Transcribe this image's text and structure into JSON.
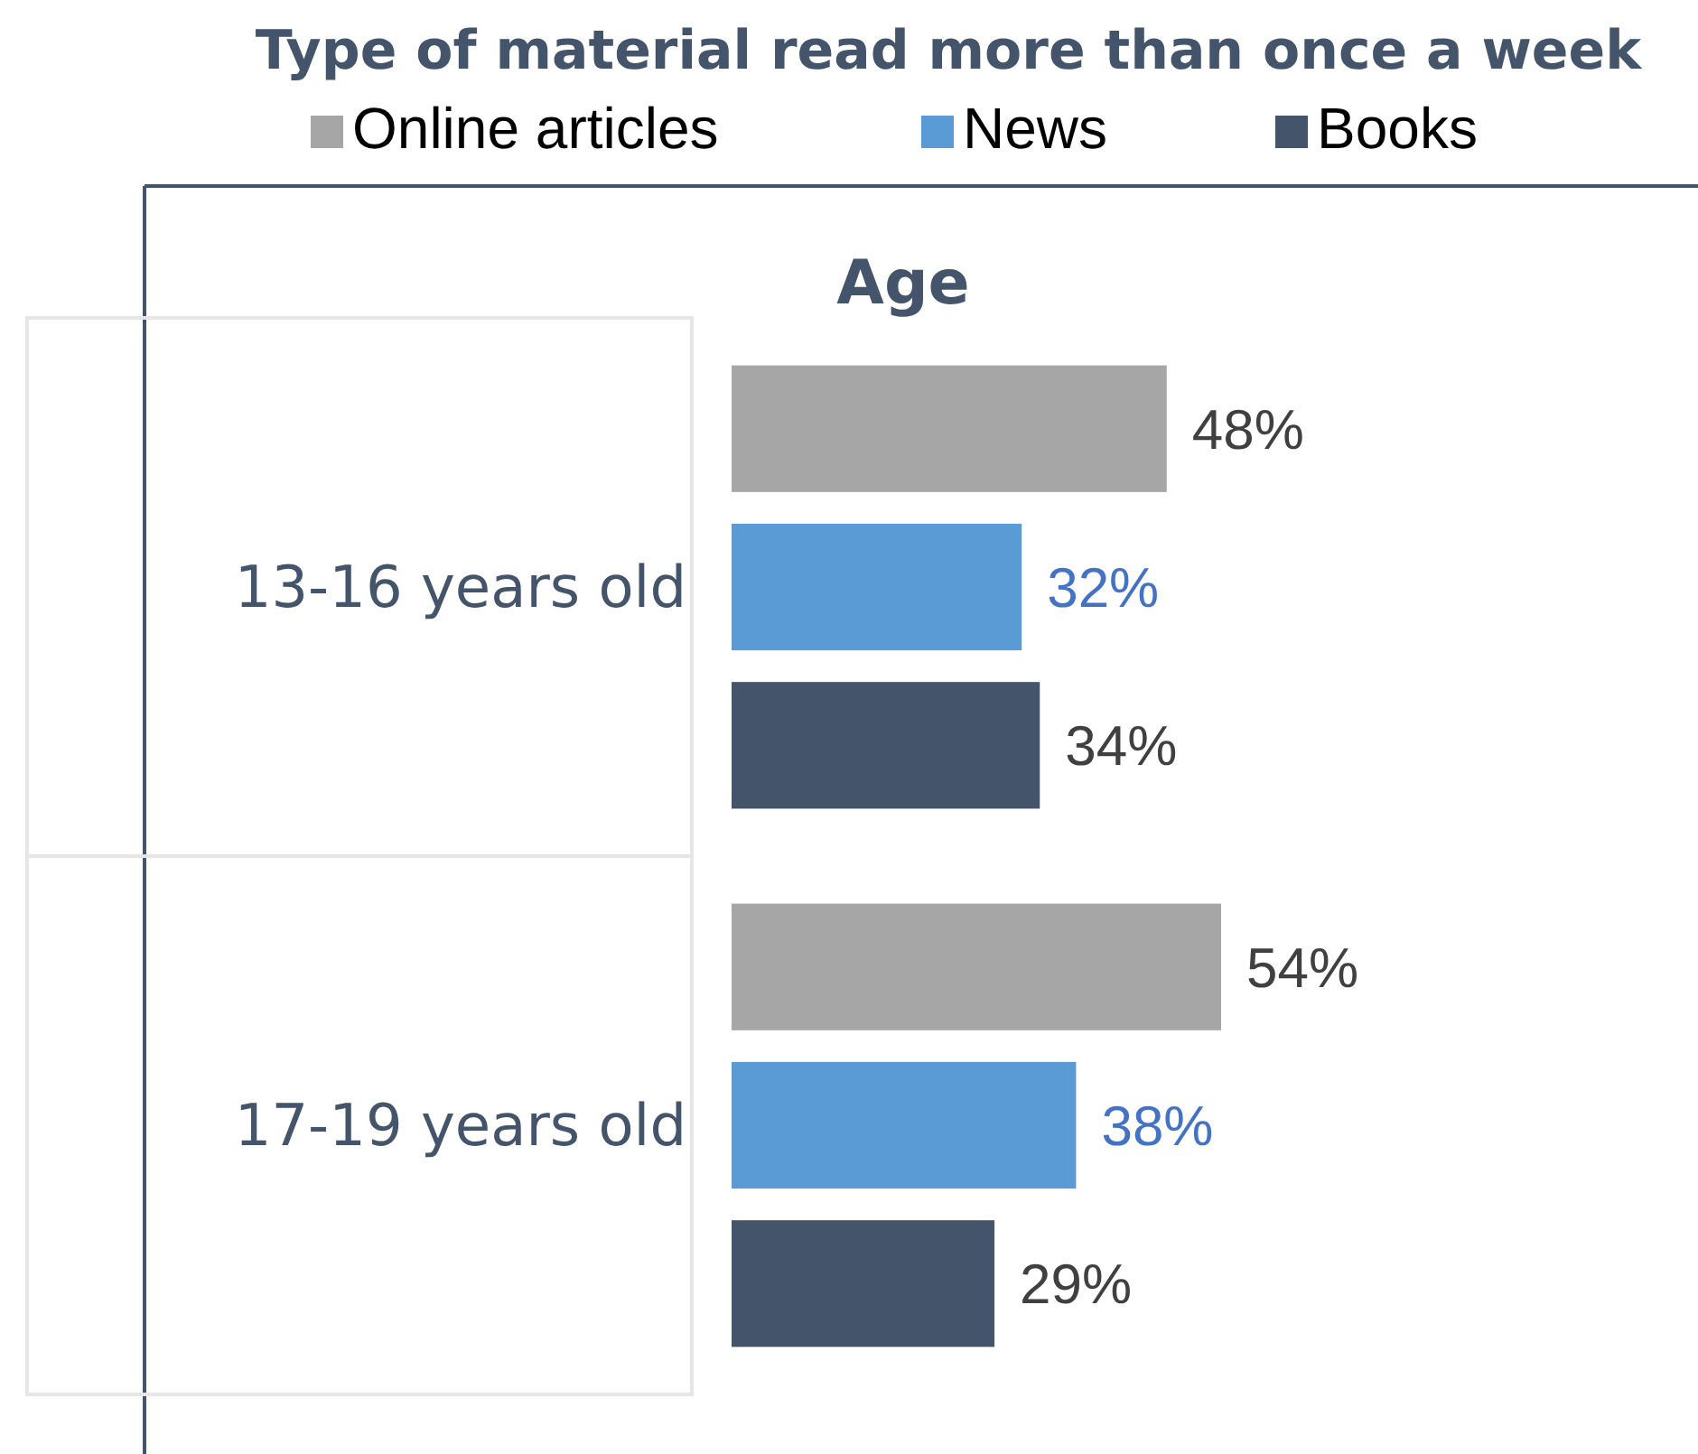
{
  "chart_data": {
    "type": "bar",
    "orientation": "horizontal",
    "title": "Type of material read more than once a week",
    "ylabel": "Age",
    "categories": [
      "13-16 years old",
      "17-19 years old"
    ],
    "series": [
      {
        "name": "Online articles",
        "color": "#a6a6a6",
        "values": [
          48,
          54
        ],
        "value_labels": [
          "48%",
          "54%"
        ]
      },
      {
        "name": "News",
        "color": "#5b9bd5",
        "values": [
          32,
          38
        ],
        "value_labels": [
          "32%",
          "38%"
        ]
      },
      {
        "name": "Books",
        "color": "#44546a",
        "values": [
          34,
          29
        ],
        "value_labels": [
          "34%",
          "29%"
        ]
      }
    ],
    "legend": "top"
  }
}
